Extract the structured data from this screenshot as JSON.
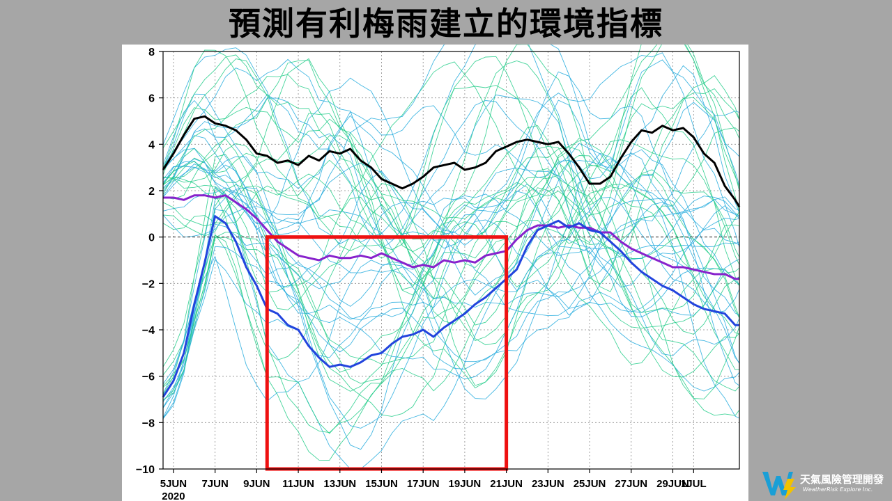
{
  "title": "預測有利梅雨建立的環境指標",
  "logo": {
    "name_cn": "天氣風險管理開發",
    "name_en": "WeatherRisk Explore Inc."
  },
  "colors": {
    "background": "#a6a6a6",
    "ensemble_cyan": "#22aadd",
    "ensemble_green": "#22cc88",
    "black_mean": "#000000",
    "purple_mean": "#8822cc",
    "blue_mean": "#2244dd",
    "highlight_box": "#ee1111"
  },
  "chart_data": {
    "type": "line",
    "x_tick_labels": [
      "5JUN",
      "7JUN",
      "9JUN",
      "11JUN",
      "13JUN",
      "15JUN",
      "17JUN",
      "19JUN",
      "21JUN",
      "23JUN",
      "25JUN",
      "27JUN",
      "29JUN",
      "1JUL"
    ],
    "x_year_label": "2020",
    "x_range": [
      4.5,
      32.2
    ],
    "y_ticks": [
      8,
      6,
      4,
      2,
      0,
      -2,
      -4,
      -6,
      -8,
      -10
    ],
    "ylim": [
      -10,
      8
    ],
    "grid": true,
    "zero_line": "dashed",
    "highlight_box": {
      "x_start": 9.5,
      "x_end": 21.0,
      "y_top": 0.0,
      "y_bottom": -10.0
    },
    "series": [
      {
        "key": "black_mean",
        "x": [
          4.5,
          5,
          5.5,
          6,
          6.5,
          7,
          7.5,
          8,
          8.5,
          9,
          9.5,
          10,
          10.5,
          11,
          11.5,
          12,
          12.5,
          13,
          13.5,
          14,
          14.5,
          15,
          15.5,
          16,
          16.5,
          17,
          17.5,
          18,
          18.5,
          19,
          19.5,
          20,
          20.5,
          21,
          21.5,
          22,
          22.5,
          23,
          23.5,
          24,
          24.5,
          25,
          25.5,
          26,
          26.5,
          27,
          27.5,
          28,
          28.5,
          29,
          29.5,
          30,
          30.5,
          31,
          31.5,
          32,
          32.2
        ],
        "y": [
          2.9,
          3.6,
          4.4,
          5.1,
          5.2,
          4.9,
          4.8,
          4.6,
          4.2,
          3.6,
          3.5,
          3.2,
          3.3,
          3.1,
          3.5,
          3.3,
          3.7,
          3.6,
          3.8,
          3.3,
          3.0,
          2.5,
          2.3,
          2.1,
          2.3,
          2.6,
          3.0,
          3.1,
          3.2,
          2.9,
          3.0,
          3.2,
          3.7,
          3.9,
          4.1,
          4.2,
          4.1,
          4.0,
          4.1,
          3.6,
          3.0,
          2.3,
          2.3,
          2.6,
          3.4,
          4.1,
          4.6,
          4.5,
          4.8,
          4.6,
          4.7,
          4.3,
          3.6,
          3.2,
          2.2,
          1.6,
          1.3
        ]
      },
      {
        "key": "purple_mean",
        "x": [
          4.5,
          5,
          5.5,
          6,
          6.5,
          7,
          7.5,
          8,
          8.5,
          9,
          9.5,
          10,
          10.5,
          11,
          11.5,
          12,
          12.5,
          13,
          13.5,
          14,
          14.5,
          15,
          15.5,
          16,
          16.5,
          17,
          17.5,
          18,
          18.5,
          19,
          19.5,
          20,
          20.5,
          21,
          21.5,
          22,
          22.5,
          23,
          23.5,
          24,
          24.5,
          25,
          25.5,
          26,
          26.5,
          27,
          27.5,
          28,
          28.5,
          29,
          29.5,
          30,
          30.5,
          31,
          31.5,
          32,
          32.2
        ],
        "y": [
          1.7,
          1.7,
          1.6,
          1.8,
          1.8,
          1.7,
          1.8,
          1.5,
          1.2,
          0.8,
          0.3,
          -0.2,
          -0.5,
          -0.8,
          -0.9,
          -1.0,
          -0.8,
          -0.9,
          -0.9,
          -0.8,
          -0.9,
          -0.7,
          -0.9,
          -1.1,
          -1.3,
          -1.2,
          -1.3,
          -1.0,
          -1.1,
          -1.0,
          -1.1,
          -0.8,
          -0.7,
          -0.6,
          -0.1,
          0.3,
          0.5,
          0.5,
          0.4,
          0.5,
          0.4,
          0.4,
          0.2,
          0.2,
          -0.2,
          -0.5,
          -0.7,
          -0.9,
          -1.1,
          -1.3,
          -1.3,
          -1.4,
          -1.5,
          -1.6,
          -1.6,
          -1.8,
          -1.8
        ]
      },
      {
        "key": "blue_mean",
        "x": [
          4.5,
          5,
          5.5,
          6,
          6.5,
          7,
          7.5,
          8,
          8.5,
          9,
          9.5,
          10,
          10.5,
          11,
          11.5,
          12,
          12.5,
          13,
          13.5,
          14,
          14.5,
          15,
          15.5,
          16,
          16.5,
          17,
          17.5,
          18,
          18.5,
          19,
          19.5,
          20,
          20.5,
          21,
          21.5,
          22,
          22.5,
          23,
          23.5,
          24,
          24.5,
          25,
          25.5,
          26,
          26.5,
          27,
          27.5,
          28,
          28.5,
          29,
          29.5,
          30,
          30.5,
          31,
          31.5,
          32,
          32.2
        ],
        "y": [
          -6.9,
          -6.2,
          -5.0,
          -2.9,
          -1.1,
          0.9,
          0.6,
          -0.2,
          -1.3,
          -2.1,
          -3.1,
          -3.3,
          -3.8,
          -4.0,
          -4.7,
          -5.2,
          -5.6,
          -5.5,
          -5.6,
          -5.4,
          -5.1,
          -5.0,
          -4.6,
          -4.3,
          -4.2,
          -4.0,
          -4.3,
          -3.9,
          -3.6,
          -3.3,
          -2.9,
          -2.6,
          -2.2,
          -1.8,
          -1.4,
          -0.4,
          0.3,
          0.5,
          0.7,
          0.4,
          0.6,
          0.3,
          0.2,
          -0.2,
          -0.6,
          -1.1,
          -1.5,
          -1.8,
          -2.1,
          -2.3,
          -2.6,
          -2.9,
          -3.1,
          -3.2,
          -3.3,
          -3.8,
          -3.8
        ]
      }
    ]
  }
}
